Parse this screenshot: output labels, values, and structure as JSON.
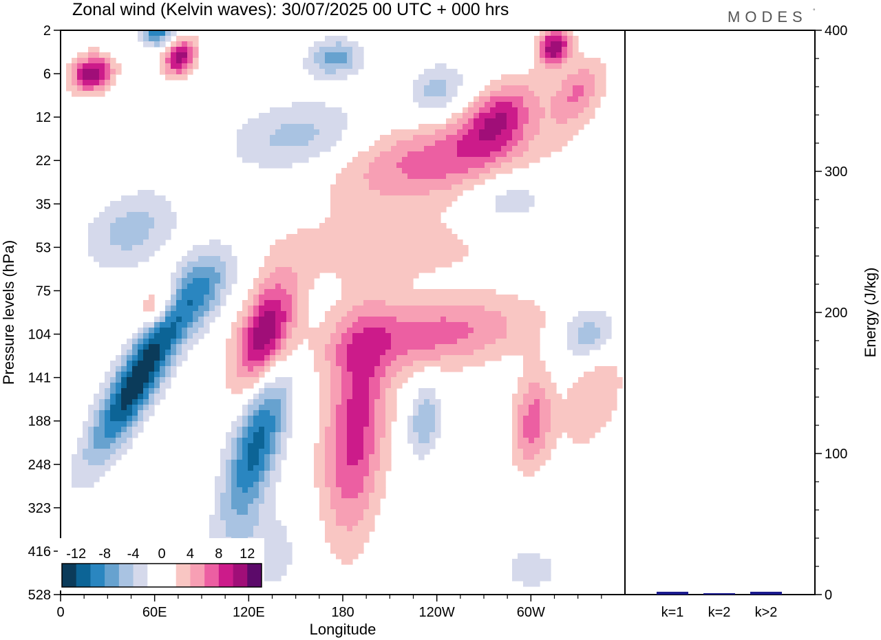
{
  "brand": "MODES",
  "brand_mark": "°",
  "chart_data": [
    {
      "type": "heatmap",
      "title": "Zonal wind (Kelvin waves):  30/07/2025  00 UTC  + 000 hrs",
      "xlabel": "Longitude",
      "ylabel": "Pressure levels (hPa)",
      "x_ticks": [
        "0",
        "60E",
        "120E",
        "180",
        "120W",
        "60W"
      ],
      "x_tick_degrees": [
        0,
        60,
        120,
        180,
        240,
        300
      ],
      "xlim": [
        0,
        360
      ],
      "y_ticks": [
        "2",
        "6",
        "12",
        "22",
        "35",
        "53",
        "75",
        "104",
        "141",
        "188",
        "248",
        "323",
        "416",
        "528"
      ],
      "colorbar_labels": [
        "-12",
        "-8",
        "-4",
        "0",
        "4",
        "8",
        "12"
      ],
      "levels": [
        -14,
        -12,
        -10,
        -8,
        -6,
        -4,
        -2,
        0,
        2,
        4,
        6,
        8,
        10,
        12,
        14
      ],
      "level_colors": [
        "#0b3b5a",
        "#0c6496",
        "#2a86c0",
        "#67a2cf",
        "#a9c3e2",
        "#d5d9eb",
        "#ffffff",
        "#ffffff",
        "#f9c6c3",
        "#f79fb4",
        "#ec5fa2",
        "#cc1b8a",
        "#a00e78",
        "#5c0a6a"
      ],
      "features": [
        {
          "lon": 50,
          "level": 141,
          "value": -14,
          "lon_width": 22,
          "level_span": 2.6,
          "tilt": 1.2
        },
        {
          "lon": 90,
          "level": 75,
          "value": -7,
          "lon_width": 26,
          "level_span": 1.4,
          "tilt": 1.0
        },
        {
          "lon": 125,
          "level": 216,
          "value": -11,
          "lon_width": 22,
          "level_span": 2.6,
          "tilt": 0.6
        },
        {
          "lon": 131,
          "level": 104,
          "value": 12,
          "lon_width": 24,
          "level_span": 1.8,
          "tilt": 0.6
        },
        {
          "lon": 62,
          "level": 85,
          "value": 6,
          "lon_width": 18,
          "level_span": 0.7,
          "tilt": 0.8
        },
        {
          "lon": 188,
          "level": 200,
          "value": 9,
          "lon_width": 28,
          "level_span": 3.6,
          "tilt": 0.2
        },
        {
          "lon": 236,
          "level": 104,
          "value": 7,
          "lon_width": 90,
          "level_span": 1.2,
          "tilt": 2.0
        },
        {
          "lon": 240,
          "level": 22,
          "value": 7,
          "lon_width": 90,
          "level_span": 1.4,
          "tilt": 1.8
        },
        {
          "lon": 210,
          "level": 53,
          "value": 3,
          "lon_width": 120,
          "level_span": 1.2,
          "tilt": 1.0
        },
        {
          "lon": 301,
          "level": 188,
          "value": 7,
          "lon_width": 18,
          "level_span": 1.6,
          "tilt": 0.2
        },
        {
          "lon": 340,
          "level": 160,
          "value": 4,
          "lon_width": 26,
          "level_span": 1.8,
          "tilt": 0.6
        },
        {
          "lon": 152,
          "level": 16,
          "value": -5,
          "lon_width": 60,
          "level_span": 1.2,
          "tilt": 0.8
        },
        {
          "lon": 45,
          "level": 45,
          "value": -5,
          "lon_width": 40,
          "level_span": 1.3,
          "tilt": 0.8
        },
        {
          "lon": 20,
          "level": 6,
          "value": 12,
          "lon_width": 18,
          "level_span": 0.6,
          "tilt": 0.4
        },
        {
          "lon": 76,
          "level": 4,
          "value": 11,
          "lon_width": 14,
          "level_span": 0.6,
          "tilt": 0.5
        },
        {
          "lon": 315,
          "level": 3,
          "value": 12,
          "lon_width": 14,
          "level_span": 0.6,
          "tilt": 0.3
        },
        {
          "lon": 62,
          "level": 2,
          "value": -10,
          "lon_width": 14,
          "level_span": 0.5,
          "tilt": 0.3
        },
        {
          "lon": 175,
          "level": 4,
          "value": -7,
          "lon_width": 24,
          "level_span": 0.6,
          "tilt": 0.4
        },
        {
          "lon": 240,
          "level": 8,
          "value": -5,
          "lon_width": 26,
          "level_span": 0.9,
          "tilt": 0.4
        },
        {
          "lon": 285,
          "level": 33,
          "value": -4,
          "lon_width": 40,
          "level_span": 1.0,
          "tilt": 0.4
        },
        {
          "lon": 337,
          "level": 104,
          "value": -6,
          "lon_width": 26,
          "level_span": 0.9,
          "tilt": 0.3
        },
        {
          "lon": 280,
          "level": 12,
          "value": 8,
          "lon_width": 30,
          "level_span": 1.2,
          "tilt": 1.0
        },
        {
          "lon": 330,
          "level": 8,
          "value": 6,
          "lon_width": 22,
          "level_span": 1.1,
          "tilt": 0.8
        },
        {
          "lon": 232,
          "level": 188,
          "value": -6,
          "lon_width": 14,
          "level_span": 1.2,
          "tilt": 0.2
        },
        {
          "lon": 300,
          "level": 460,
          "value": -3,
          "lon_width": 30,
          "level_span": 0.8,
          "tilt": 0.0
        },
        {
          "lon": 130,
          "level": 416,
          "value": -3,
          "lon_width": 40,
          "level_span": 1.6,
          "tilt": 0.0
        }
      ]
    },
    {
      "type": "bar",
      "ylabel": "Energy (J/kg)",
      "categories": [
        "k=1",
        "k=2",
        "k>2"
      ],
      "values": [
        2,
        1,
        2
      ],
      "ylim": [
        0,
        400
      ],
      "y_ticks": [
        "0",
        "100",
        "200",
        "300",
        "400"
      ],
      "bar_color": "#1a1a8c"
    }
  ]
}
